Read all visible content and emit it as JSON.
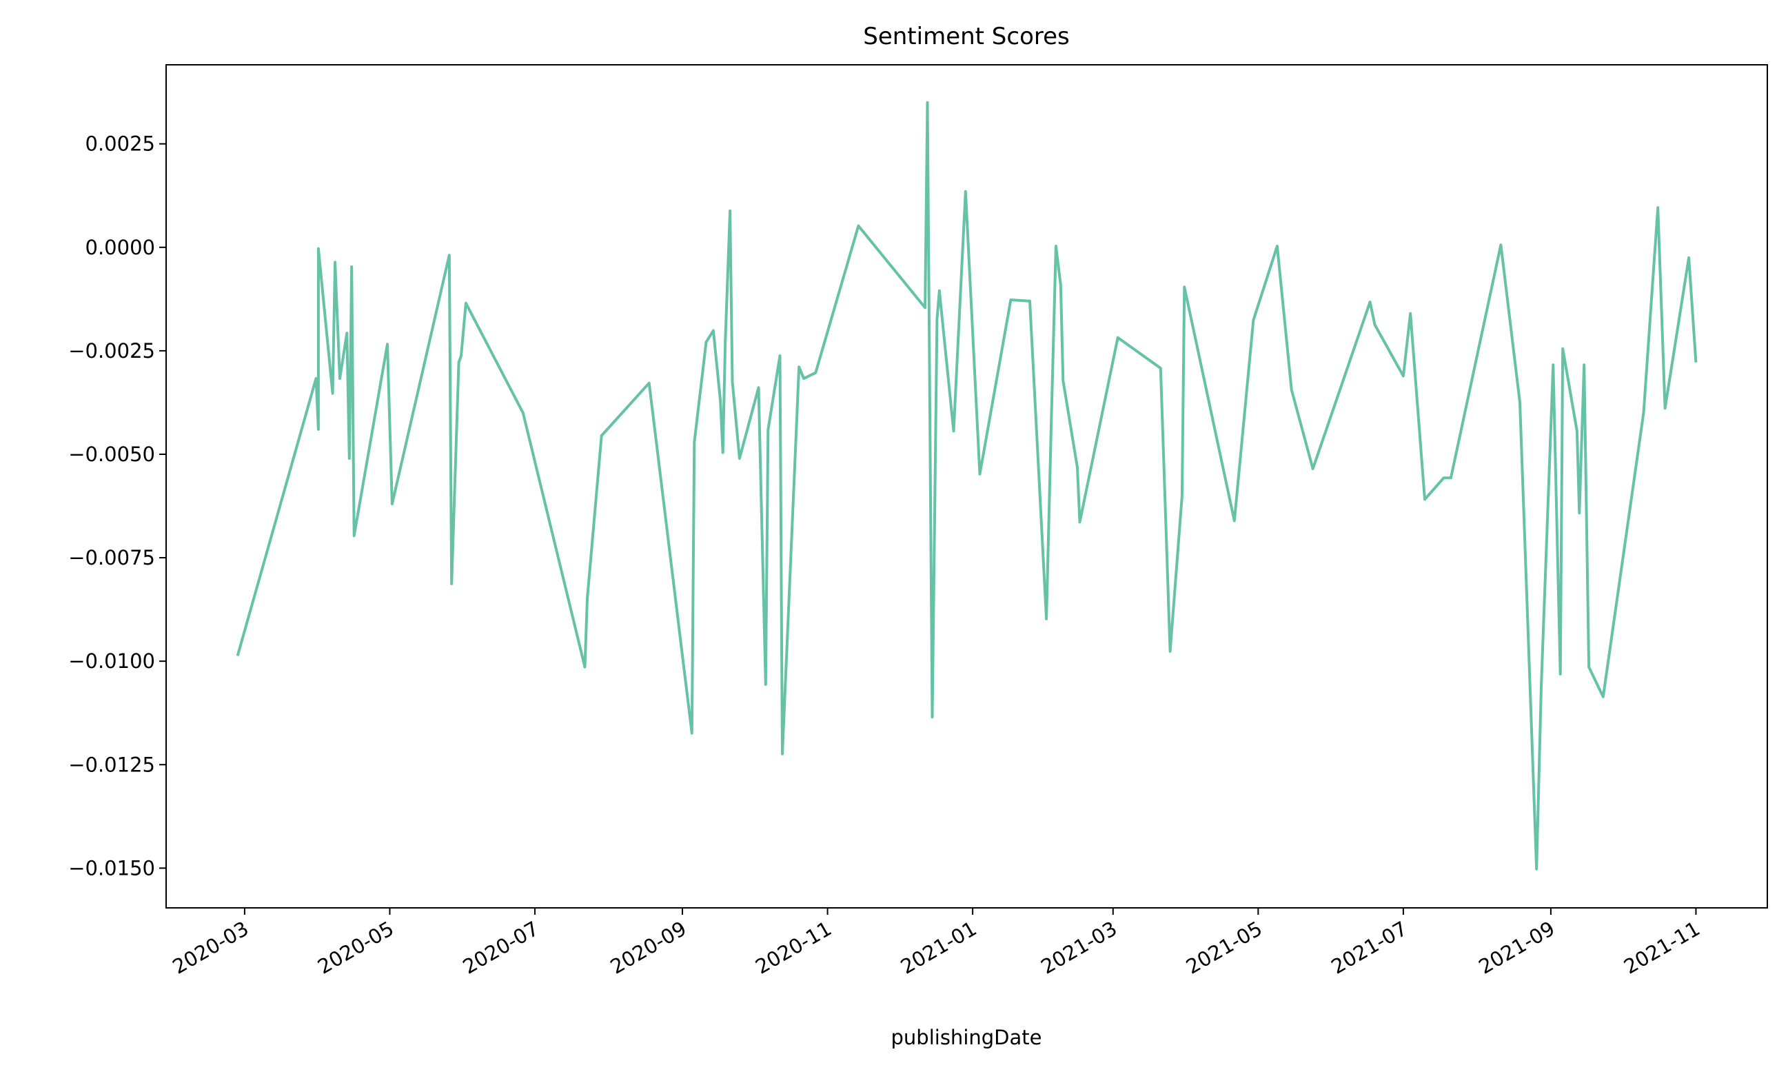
{
  "chart_data": {
    "type": "line",
    "title": "Sentiment Scores",
    "x_label": "publishingDate",
    "x": [
      "2020-02-27",
      "2020-03-31",
      "2020-04-01",
      "2020-04-01",
      "2020-04-07",
      "2020-04-08",
      "2020-04-10",
      "2020-04-13",
      "2020-04-14",
      "2020-04-15",
      "2020-04-16",
      "2020-04-30",
      "2020-05-02",
      "2020-05-26",
      "2020-05-27",
      "2020-05-30",
      "2020-05-31",
      "2020-06-02",
      "2020-06-26",
      "2020-07-22",
      "2020-07-23",
      "2020-07-29",
      "2020-08-18",
      "2020-09-05",
      "2020-09-06",
      "2020-09-11",
      "2020-09-14",
      "2020-09-17",
      "2020-09-18",
      "2020-09-19",
      "2020-09-21",
      "2020-09-22",
      "2020-09-25",
      "2020-10-03",
      "2020-10-06",
      "2020-10-07",
      "2020-10-12",
      "2020-10-13",
      "2020-10-20",
      "2020-10-22",
      "2020-10-27",
      "2020-11-14",
      "2020-12-12",
      "2020-12-13",
      "2020-12-15",
      "2020-12-17",
      "2020-12-18",
      "2020-12-24",
      "2020-12-29",
      "2021-01-04",
      "2021-01-17",
      "2021-01-25",
      "2021-02-01",
      "2021-02-03",
      "2021-02-05",
      "2021-02-07",
      "2021-02-08",
      "2021-02-14",
      "2021-02-15",
      "2021-03-03",
      "2021-03-21",
      "2021-03-25",
      "2021-03-30",
      "2021-03-31",
      "2021-04-21",
      "2021-04-29",
      "2021-05-09",
      "2021-05-15",
      "2021-05-24",
      "2021-06-17",
      "2021-06-19",
      "2021-07-01",
      "2021-07-04",
      "2021-07-10",
      "2021-07-18",
      "2021-07-21",
      "2021-08-11",
      "2021-08-19",
      "2021-08-26",
      "2021-08-28",
      "2021-09-02",
      "2021-09-05",
      "2021-09-06",
      "2021-09-12",
      "2021-09-13",
      "2021-09-15",
      "2021-09-17",
      "2021-09-23",
      "2021-10-10",
      "2021-10-16",
      "2021-10-19",
      "2021-10-29",
      "2021-11-01"
    ],
    "series": [
      {
        "name": "sentiment",
        "color": "#66c2a5",
        "values": [
          -0.00987,
          -0.00317,
          -0.0044,
          -3e-05,
          -0.00353,
          -0.00036,
          -0.00317,
          -0.00207,
          -0.0051,
          -0.00047,
          -0.00697,
          -0.00234,
          -0.0062,
          -0.00019,
          -0.00813,
          -0.00278,
          -0.00262,
          -0.00135,
          -0.004,
          -0.01014,
          -0.00849,
          -0.00455,
          -0.00328,
          -0.01174,
          -0.00471,
          -0.00229,
          -0.00201,
          -0.00372,
          -0.00496,
          -0.00229,
          0.00088,
          -0.00325,
          -0.0051,
          -0.00339,
          -0.01056,
          -0.00441,
          -0.00262,
          -0.01224,
          -0.00289,
          -0.00317,
          -0.00303,
          0.00052,
          -0.00146,
          0.0035,
          -0.01135,
          -0.00174,
          -0.00105,
          -0.00444,
          0.00135,
          -0.00548,
          -0.00127,
          -0.0013,
          -0.00898,
          -0.00435,
          3e-05,
          -0.00091,
          -0.00322,
          -0.00532,
          -0.00664,
          -0.00218,
          -0.00292,
          -0.00976,
          -0.00601,
          -0.00096,
          -0.00661,
          -0.00176,
          3e-05,
          -0.00344,
          -0.00535,
          -0.00132,
          -0.00187,
          -0.00311,
          -0.0016,
          -0.00609,
          -0.00557,
          -0.00557,
          6e-05,
          -0.00375,
          -0.01502,
          -0.01056,
          -0.00284,
          -0.01031,
          -0.00245,
          -0.00444,
          -0.00642,
          -0.00284,
          -0.01014,
          -0.01086,
          -0.004,
          0.00096,
          -0.00389,
          -0.00025,
          -0.00278
        ]
      }
    ],
    "xlim": [
      "2020-01-28",
      "2021-12-01"
    ],
    "xticks": [
      {
        "value": "2020-03-01",
        "label": "2020-03"
      },
      {
        "value": "2020-05-01",
        "label": "2020-05"
      },
      {
        "value": "2020-07-01",
        "label": "2020-07"
      },
      {
        "value": "2020-09-01",
        "label": "2020-09"
      },
      {
        "value": "2020-11-01",
        "label": "2020-11"
      },
      {
        "value": "2021-01-01",
        "label": "2021-01"
      },
      {
        "value": "2021-03-01",
        "label": "2021-03"
      },
      {
        "value": "2021-05-01",
        "label": "2021-05"
      },
      {
        "value": "2021-07-01",
        "label": "2021-07"
      },
      {
        "value": "2021-09-01",
        "label": "2021-09"
      },
      {
        "value": "2021-11-01",
        "label": "2021-11"
      }
    ],
    "ylim": [
      -0.01596,
      0.00441
    ],
    "yticks": [
      {
        "value": -0.015,
        "label": "−0.0150"
      },
      {
        "value": -0.0125,
        "label": "−0.0125"
      },
      {
        "value": -0.01,
        "label": "−0.0100"
      },
      {
        "value": -0.0075,
        "label": "−0.0075"
      },
      {
        "value": -0.005,
        "label": "−0.0050"
      },
      {
        "value": -0.0025,
        "label": "−0.0025"
      },
      {
        "value": 0,
        "label": "0.0000"
      },
      {
        "value": 0.0025,
        "label": "0.0025"
      }
    ],
    "grid": false
  }
}
